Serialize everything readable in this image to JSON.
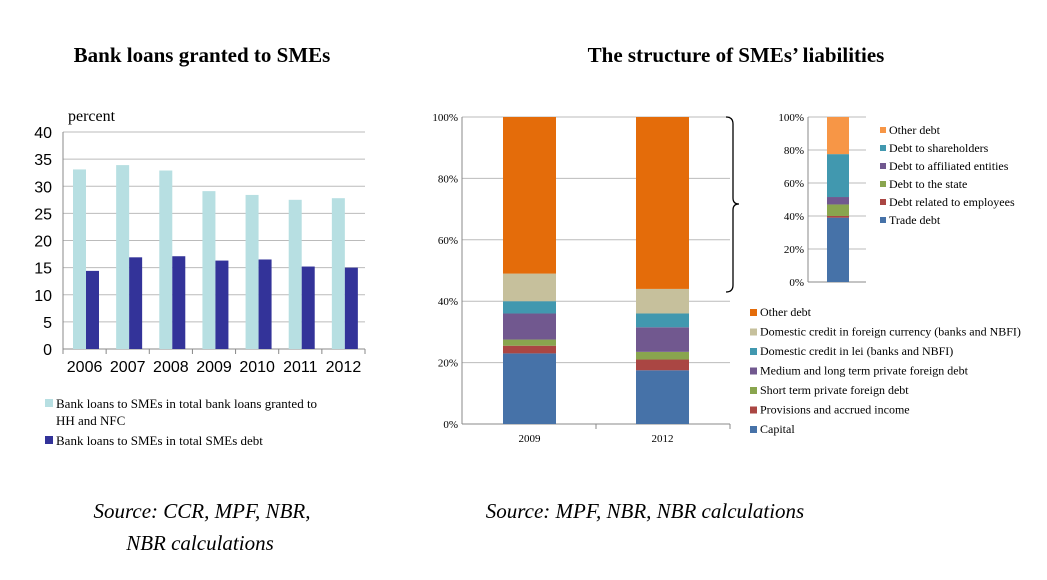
{
  "chart_data": [
    {
      "type": "bar",
      "title": "Bank loans granted to SMEs",
      "ylabel": "percent",
      "ylim": [
        0,
        40
      ],
      "yticks": [
        0,
        5,
        10,
        15,
        20,
        25,
        30,
        35,
        40
      ],
      "grid": true,
      "legend": "bottom",
      "categories": [
        "2006",
        "2007",
        "2008",
        "2009",
        "2010",
        "2011",
        "2012"
      ],
      "series": [
        {
          "name": "Bank loans to SMEs in total bank loans granted to HH and NFC",
          "color": "#b7dfe2",
          "values": [
            33.1,
            33.9,
            32.9,
            29.1,
            28.4,
            27.5,
            27.8
          ]
        },
        {
          "name": "Bank loans to SMEs in total SMEs debt",
          "color": "#333399",
          "values": [
            14.4,
            16.9,
            17.1,
            16.3,
            16.5,
            15.2,
            15.0
          ]
        }
      ],
      "source": "Source: CCR, MPF, NBR,",
      "source2": "NBR calculations"
    },
    {
      "type": "bar",
      "stacked": true,
      "title": "The structure of SMEs’ liabilities",
      "ylim": [
        0,
        100
      ],
      "yticks": [
        "0%",
        "20%",
        "40%",
        "60%",
        "80%",
        "100%"
      ],
      "grid": true,
      "legend": "right",
      "categories": [
        "2009",
        "2012"
      ],
      "series": [
        {
          "name": "Capital",
          "color": "#4672a8",
          "values": [
            23,
            17.5
          ]
        },
        {
          "name": "Provisions and accrued income",
          "color": "#aa4643",
          "values": [
            2.5,
            3.5
          ]
        },
        {
          "name": "Short term private foreign debt",
          "color": "#89a54e",
          "values": [
            2,
            2.5
          ]
        },
        {
          "name": "Medium and long term private foreign debt",
          "color": "#71588f",
          "values": [
            8.5,
            8
          ]
        },
        {
          "name": "Domestic credit in lei (banks and NBFI)",
          "color": "#4198af",
          "values": [
            4,
            4.5
          ]
        },
        {
          "name": "Domestic credit in foreign currency (banks and NBFI)",
          "color": "#c6c09c",
          "values": [
            9,
            8
          ]
        },
        {
          "name": "Other debt",
          "color": "#e46c0a",
          "values": [
            51,
            56
          ]
        }
      ],
      "source": "Source: MPF, NBR, NBR calculations"
    },
    {
      "type": "bar",
      "stacked": true,
      "ylim": [
        0,
        100
      ],
      "yticks": [
        "0%",
        "20%",
        "40%",
        "60%",
        "80%",
        "100%"
      ],
      "grid": true,
      "legend": "right",
      "categories": [
        ""
      ],
      "series": [
        {
          "name": "Trade debt",
          "color": "#4672a8",
          "values": [
            39
          ]
        },
        {
          "name": "Debt related to employees",
          "color": "#aa4643",
          "values": [
            1
          ]
        },
        {
          "name": "Debt to the state",
          "color": "#89a54e",
          "values": [
            7
          ]
        },
        {
          "name": "Debt to affiliated entities",
          "color": "#71588f",
          "values": [
            4.5
          ]
        },
        {
          "name": "Debt to shareholders",
          "color": "#4198af",
          "values": [
            26
          ]
        },
        {
          "name": "Other debt",
          "color": "#f79646",
          "values": [
            22.5
          ]
        }
      ]
    }
  ]
}
